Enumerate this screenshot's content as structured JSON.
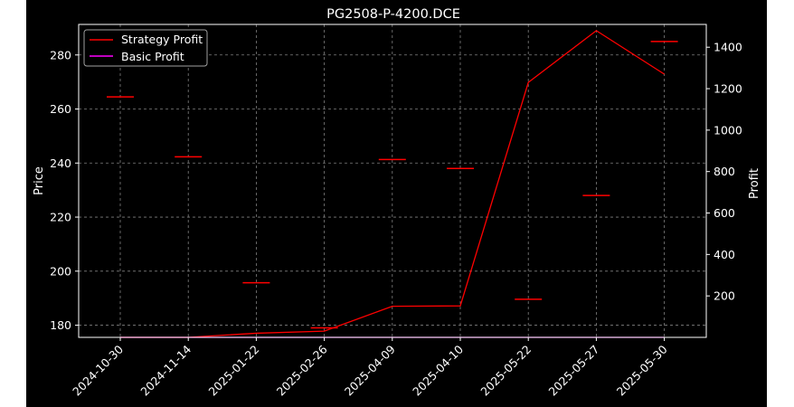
{
  "chart_data": {
    "type": "line",
    "title": "PG2508-P-4200.DCE",
    "ylabel": "Price",
    "y2label": "Profit",
    "categories": [
      "2024-10-30",
      "2024-11-14",
      "2025-01-22",
      "2025-02-26",
      "2025-04-09",
      "2025-04-10",
      "2025-05-22",
      "2025-05-27",
      "2025-05-30"
    ],
    "price_series": {
      "name": "Price",
      "marker": "hline",
      "color": "#ff0000",
      "values": [
        264.5,
        242.3,
        195.7,
        179.0,
        241.3,
        238.0,
        189.6,
        228.0,
        285.0
      ]
    },
    "series": [
      {
        "name": "Strategy Profit",
        "axis": "right",
        "color": "#ff0000",
        "values": [
          0,
          0,
          20,
          30,
          150,
          152,
          1230,
          1480,
          1270
        ]
      },
      {
        "name": "Basic Profit",
        "axis": "right",
        "color": "#ff00ff",
        "values": [
          0,
          0,
          0,
          0,
          0,
          0,
          0,
          0,
          0
        ]
      }
    ],
    "ylim_left": [
      175.5,
      291.3
    ],
    "ylim_right": [
      0,
      1510
    ],
    "yticks_left": [
      "180",
      "200",
      "220",
      "240",
      "260",
      "280"
    ],
    "yticks_right": [
      "200",
      "400",
      "600",
      "800",
      "1000",
      "1200",
      "1400"
    ],
    "grid": true,
    "legend_position": "top-left",
    "colors": {
      "background": "#000000",
      "grid": "#808080",
      "text": "#ffffff"
    }
  }
}
